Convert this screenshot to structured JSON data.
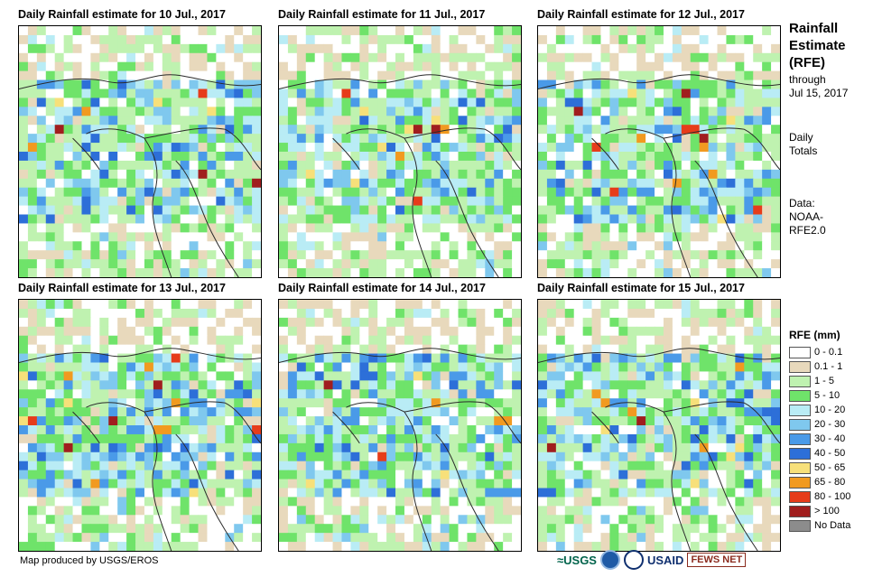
{
  "panels": [
    {
      "title": "Daily Rainfall estimate for 10 Jul., 2017"
    },
    {
      "title": "Daily Rainfall estimate for 11 Jul., 2017"
    },
    {
      "title": "Daily Rainfall estimate for 12 Jul., 2017"
    },
    {
      "title": "Daily Rainfall estimate for 13 Jul., 2017"
    },
    {
      "title": "Daily Rainfall estimate for 14 Jul., 2017"
    },
    {
      "title": "Daily Rainfall estimate for 15 Jul., 2017"
    }
  ],
  "side_info": {
    "title_lines": [
      "Rainfall",
      "Estimate",
      "(RFE)"
    ],
    "through_lines": [
      "through",
      "Jul 15, 2017"
    ],
    "totals_lines": [
      "Daily",
      "Totals"
    ],
    "data_lines": [
      "Data:",
      "NOAA-",
      "RFE2.0"
    ]
  },
  "legend": {
    "title": "RFE (mm)",
    "items": [
      {
        "label": "0 - 0.1",
        "color": "#ffffff"
      },
      {
        "label": "0.1 - 1",
        "color": "#e8d9bc"
      },
      {
        "label": "1 - 5",
        "color": "#bff2b0"
      },
      {
        "label": "5 - 10",
        "color": "#6fe36a"
      },
      {
        "label": "10 - 20",
        "color": "#b9ecf5"
      },
      {
        "label": "20 - 30",
        "color": "#7fc8ee"
      },
      {
        "label": "30 - 40",
        "color": "#4a9ae8"
      },
      {
        "label": "40 - 50",
        "color": "#2d6fd8"
      },
      {
        "label": "50 - 65",
        "color": "#f7e07a"
      },
      {
        "label": "65 - 80",
        "color": "#f19a20"
      },
      {
        "label": "80 - 100",
        "color": "#e63c1a"
      },
      {
        "label": "> 100",
        "color": "#a01e1e"
      },
      {
        "label": "No Data",
        "color": "#8c8c8c"
      }
    ]
  },
  "footer": {
    "credit": "Map produced by USGS/EROS"
  },
  "logos": {
    "usgs": "≈USGS",
    "usaid": "USAID",
    "fews": "FEWS NET"
  }
}
